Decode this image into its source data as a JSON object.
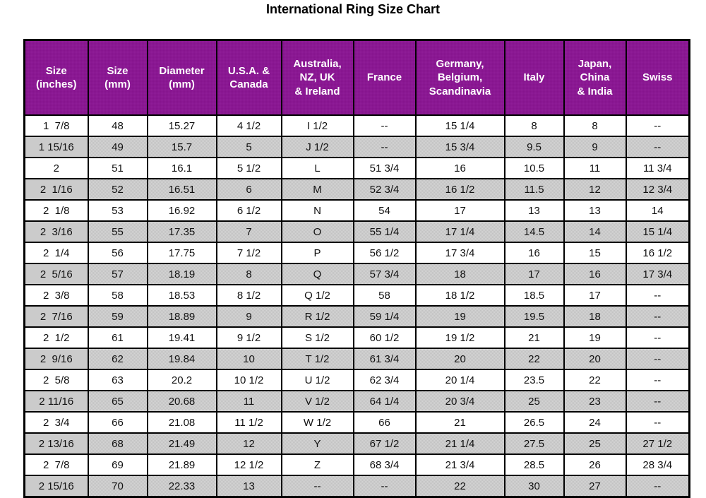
{
  "page": {
    "title": "International Ring Size Chart"
  },
  "colors": {
    "title_text": "#000000",
    "header_bg": "#8B1594",
    "header_text": "#FFFFFF",
    "row_bg": "#FFFFFF",
    "row_alt_bg": "#CBCBCB",
    "border": "#000000"
  },
  "chart_data": {
    "type": "table",
    "title": "International Ring Size Chart",
    "columns": [
      "Size\n(inches)",
      "Size\n(mm)",
      "Diameter\n(mm)",
      "U.S.A. &\nCanada",
      "Australia,\nNZ, UK\n& Ireland",
      "France",
      "Germany,\nBelgium,\nScandinavia",
      "Italy",
      "Japan,\nChina\n& India",
      "Swiss"
    ],
    "rows": [
      [
        "1  7/8",
        "48",
        "15.27",
        "4 1/2",
        "I 1/2",
        "--",
        "15 1/4",
        "8",
        "8",
        "--"
      ],
      [
        "1 15/16",
        "49",
        "15.7",
        "5",
        "J 1/2",
        "--",
        "15 3/4",
        "9.5",
        "9",
        "--"
      ],
      [
        "2",
        "51",
        "16.1",
        "5 1/2",
        "L",
        "51 3/4",
        "16",
        "10.5",
        "11",
        "11 3/4"
      ],
      [
        "2  1/16",
        "52",
        "16.51",
        "6",
        "M",
        "52 3/4",
        "16 1/2",
        "11.5",
        "12",
        "12 3/4"
      ],
      [
        "2  1/8",
        "53",
        "16.92",
        "6 1/2",
        "N",
        "54",
        "17",
        "13",
        "13",
        "14"
      ],
      [
        "2  3/16",
        "55",
        "17.35",
        "7",
        "O",
        "55 1/4",
        "17 1/4",
        "14.5",
        "14",
        "15 1/4"
      ],
      [
        "2  1/4",
        "56",
        "17.75",
        "7 1/2",
        "P",
        "56 1/2",
        "17 3/4",
        "16",
        "15",
        "16 1/2"
      ],
      [
        "2  5/16",
        "57",
        "18.19",
        "8",
        "Q",
        "57 3/4",
        "18",
        "17",
        "16",
        "17 3/4"
      ],
      [
        "2  3/8",
        "58",
        "18.53",
        "8 1/2",
        "Q 1/2",
        "58",
        "18 1/2",
        "18.5",
        "17",
        "--"
      ],
      [
        "2  7/16",
        "59",
        "18.89",
        "9",
        "R 1/2",
        "59 1/4",
        "19",
        "19.5",
        "18",
        "--"
      ],
      [
        "2  1/2",
        "61",
        "19.41",
        "9 1/2",
        "S 1/2",
        "60 1/2",
        "19 1/2",
        "21",
        "19",
        "--"
      ],
      [
        "2  9/16",
        "62",
        "19.84",
        "10",
        "T 1/2",
        "61 3/4",
        "20",
        "22",
        "20",
        "--"
      ],
      [
        "2  5/8",
        "63",
        "20.2",
        "10 1/2",
        "U 1/2",
        "62 3/4",
        "20 1/4",
        "23.5",
        "22",
        "--"
      ],
      [
        "2 11/16",
        "65",
        "20.68",
        "11",
        "V 1/2",
        "64 1/4",
        "20 3/4",
        "25",
        "23",
        "--"
      ],
      [
        "2  3/4",
        "66",
        "21.08",
        "11 1/2",
        "W 1/2",
        "66",
        "21",
        "26.5",
        "24",
        "--"
      ],
      [
        "2 13/16",
        "68",
        "21.49",
        "12",
        "Y",
        "67 1/2",
        "21 1/4",
        "27.5",
        "25",
        "27 1/2"
      ],
      [
        "2  7/8",
        "69",
        "21.89",
        "12 1/2",
        "Z",
        "68 3/4",
        "21 3/4",
        "28.5",
        "26",
        "28 3/4"
      ],
      [
        "2 15/16",
        "70",
        "22.33",
        "13",
        "--",
        "--",
        "22",
        "30",
        "27",
        "--"
      ]
    ]
  }
}
